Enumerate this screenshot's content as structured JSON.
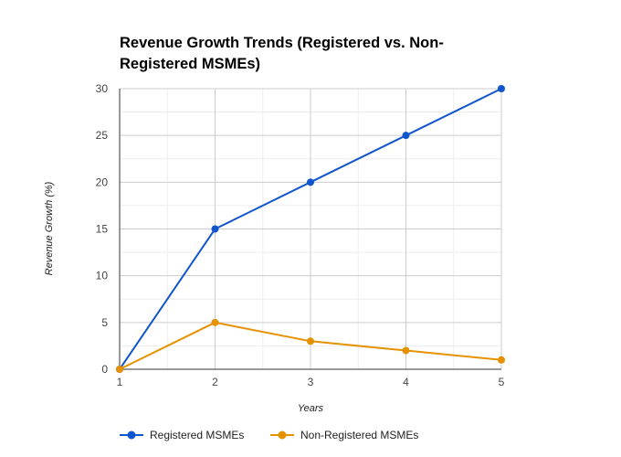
{
  "chart_data": {
    "type": "line",
    "title": "Revenue Growth Trends (Registered vs. Non-Registered MSMEs)",
    "xlabel": "Years",
    "ylabel": "Revenue Growth (%)",
    "x": [
      1,
      2,
      3,
      4,
      5
    ],
    "x_tick_labels": [
      "1",
      "2",
      "3",
      "4",
      "5"
    ],
    "y_ticks": [
      0,
      5,
      10,
      15,
      20,
      25,
      30
    ],
    "y_tick_labels": [
      "0",
      "5",
      "10",
      "15",
      "20",
      "25",
      "30"
    ],
    "xlim": [
      1,
      5
    ],
    "ylim": [
      0,
      30
    ],
    "grid": true,
    "legend_position": "bottom",
    "series": [
      {
        "name": "Registered MSMEs",
        "color": "#1155cc",
        "values": [
          0,
          15,
          20,
          25,
          30
        ]
      },
      {
        "name": "Non-Registered MSMEs",
        "color": "#e69100",
        "values": [
          0,
          5,
          3,
          2,
          1
        ]
      }
    ]
  }
}
